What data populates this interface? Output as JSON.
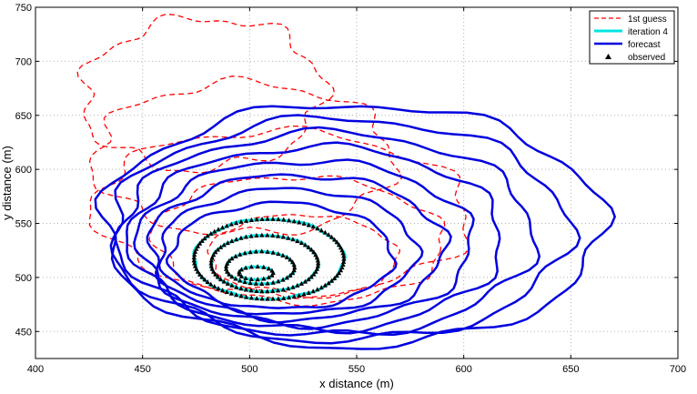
{
  "chart_data": {
    "type": "line",
    "xlabel": "x distance (m)",
    "ylabel": "y distance (m)",
    "xlim": [
      400,
      700
    ],
    "ylim": [
      425,
      750
    ],
    "xticks": [
      "400",
      "450",
      "500",
      "550",
      "600",
      "650",
      "700"
    ],
    "yticks": [
      "450",
      "500",
      "550",
      "600",
      "650",
      "700",
      "750"
    ],
    "grid": true,
    "legend_position": "top-right",
    "legend": [
      {
        "label": "1st guess",
        "style": "dashed",
        "color": "#ff0000"
      },
      {
        "label": "iteration 4",
        "style": "solid",
        "color": "#00e5e5"
      },
      {
        "label": "forecast",
        "style": "solid",
        "color": "#0000e0"
      },
      {
        "label": "observed",
        "style": "marker-triangle",
        "color": "#000000"
      }
    ],
    "series": [
      {
        "name": "1st guess",
        "style": "dashed",
        "color": "#ff0000",
        "contours": [
          {
            "cx": 478,
            "cy": 670,
            "rx": 56,
            "ry": 70,
            "rot": -5,
            "wob": 0.07
          },
          {
            "cx": 497,
            "cy": 610,
            "rx": 70,
            "ry": 70,
            "rot": -10,
            "wob": 0.06
          },
          {
            "cx": 515,
            "cy": 560,
            "rx": 88,
            "ry": 75,
            "rot": -10,
            "wob": 0.05
          },
          {
            "cx": 523,
            "cy": 535,
            "rx": 68,
            "ry": 58,
            "rot": -10,
            "wob": 0.04
          },
          {
            "cx": 525,
            "cy": 520,
            "rx": 44,
            "ry": 38,
            "rot": -8,
            "wob": 0.03
          }
        ]
      },
      {
        "name": "forecast",
        "style": "solid",
        "color": "#0000e0",
        "contours": [
          {
            "cx": 548,
            "cy": 548,
            "rx": 117,
            "ry": 112,
            "rot": 0,
            "wob": 0.035
          },
          {
            "cx": 542,
            "cy": 544,
            "rx": 107,
            "ry": 103,
            "rot": 0,
            "wob": 0.035
          },
          {
            "cx": 536,
            "cy": 540,
            "rx": 97,
            "ry": 94,
            "rot": 0,
            "wob": 0.035
          },
          {
            "cx": 531,
            "cy": 536,
            "rx": 87,
            "ry": 85,
            "rot": 0,
            "wob": 0.035
          },
          {
            "cx": 526,
            "cy": 532,
            "rx": 78,
            "ry": 76,
            "rot": 0,
            "wob": 0.035
          },
          {
            "cx": 522,
            "cy": 528,
            "rx": 69,
            "ry": 67,
            "rot": 0,
            "wob": 0.035
          },
          {
            "cx": 518,
            "cy": 524,
            "rx": 60,
            "ry": 58,
            "rot": 0,
            "wob": 0.03
          },
          {
            "cx": 515,
            "cy": 520,
            "rx": 52,
            "ry": 49,
            "rot": 0,
            "wob": 0.03
          }
        ]
      },
      {
        "name": "iteration 4",
        "style": "solid",
        "color": "#00e5e5",
        "contours": [
          {
            "cx": 509,
            "cy": 517,
            "rx": 35,
            "ry": 37,
            "rot": 0,
            "wob": 0.015
          },
          {
            "cx": 507,
            "cy": 513,
            "rx": 25,
            "ry": 26,
            "rot": 0,
            "wob": 0.01
          },
          {
            "cx": 505,
            "cy": 509,
            "rx": 16,
            "ry": 15,
            "rot": 0,
            "wob": 0.01
          },
          {
            "cx": 503,
            "cy": 504,
            "rx": 8,
            "ry": 6,
            "rot": 0,
            "wob": 0.0
          }
        ]
      },
      {
        "name": "observed",
        "style": "marker-triangle",
        "color": "#000000",
        "contours": [
          {
            "cx": 509,
            "cy": 517,
            "rx": 35,
            "ry": 37
          },
          {
            "cx": 507,
            "cy": 513,
            "rx": 25,
            "ry": 26
          },
          {
            "cx": 505,
            "cy": 509,
            "rx": 16,
            "ry": 15
          },
          {
            "cx": 503,
            "cy": 504,
            "rx": 8,
            "ry": 6
          }
        ]
      }
    ]
  }
}
